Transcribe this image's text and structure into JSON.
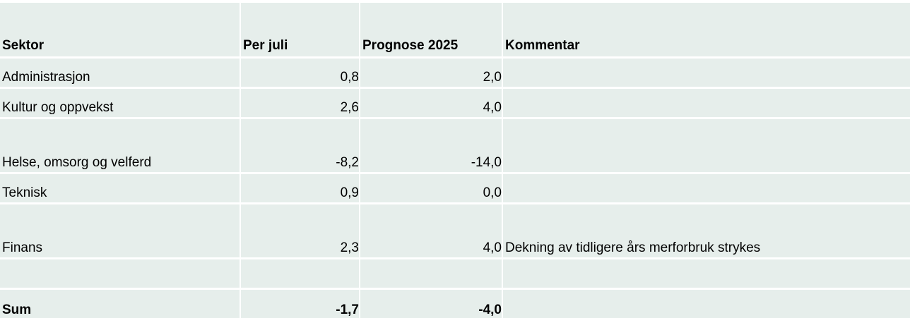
{
  "header": {
    "sector": "Sektor",
    "per_july": "Per juli",
    "forecast": "Prognose 2025",
    "comment": "Kommentar"
  },
  "rows": [
    {
      "sector": "Administrasjon",
      "per_july": "0,8",
      "forecast": "2,0",
      "comment": ""
    },
    {
      "sector": "Kultur og oppvekst",
      "per_july": "2,6",
      "forecast": "4,0",
      "comment": ""
    },
    {
      "sector": "Helse, omsorg og velferd",
      "per_july": "-8,2",
      "forecast": "-14,0",
      "comment": ""
    },
    {
      "sector": "Teknisk",
      "per_july": "0,9",
      "forecast": "0,0",
      "comment": ""
    },
    {
      "sector": "Finans",
      "per_july": "2,3",
      "forecast": "4,0",
      "comment": "Dekning av tidligere års merforbruk strykes"
    }
  ],
  "total": {
    "sector": "Sum",
    "per_july": "-1,7",
    "forecast": "-4,0",
    "comment": ""
  }
}
